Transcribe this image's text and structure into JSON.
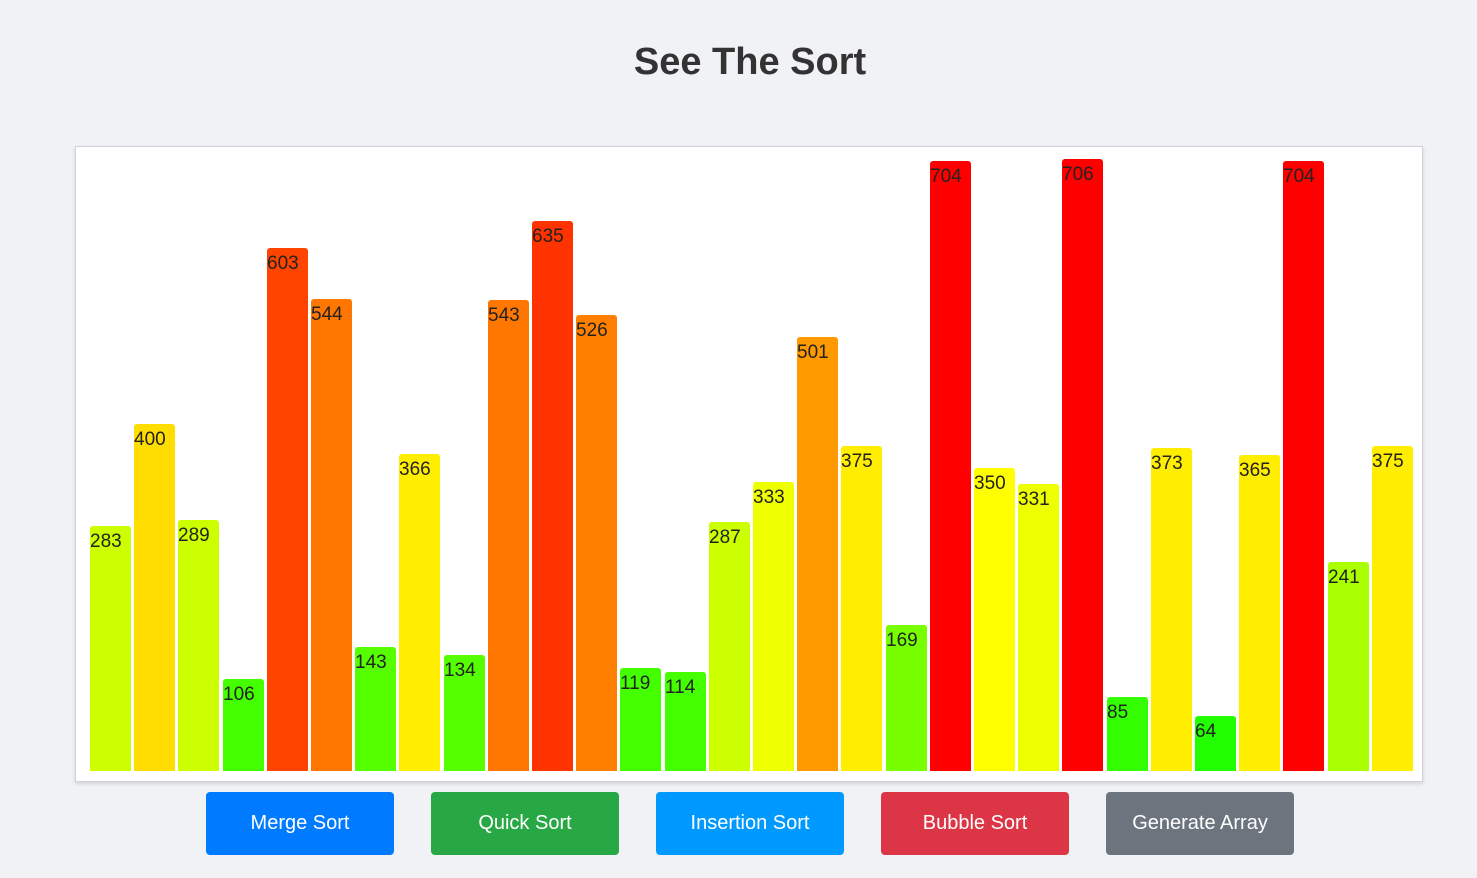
{
  "page": {
    "title": "See The Sort"
  },
  "chart_data": {
    "type": "bar",
    "values": [
      283,
      400,
      289,
      106,
      603,
      544,
      143,
      366,
      134,
      543,
      635,
      526,
      119,
      114,
      287,
      333,
      501,
      375,
      169,
      704,
      350,
      331,
      706,
      85,
      373,
      64,
      365,
      704,
      241,
      375
    ],
    "colors": [
      "#ccff00",
      "#ffdd00",
      "#ccff00",
      "#44ff00",
      "#ff4400",
      "#ff7700",
      "#55ff00",
      "#ffee00",
      "#55ff00",
      "#ff7700",
      "#ff3300",
      "#ff8000",
      "#44ff00",
      "#44ff00",
      "#ccff00",
      "#eeff00",
      "#ff9900",
      "#ffee00",
      "#77ff00",
      "#ff0000",
      "#ffff00",
      "#eeff00",
      "#ff0000",
      "#33ff00",
      "#ffee00",
      "#22ff00",
      "#ffee00",
      "#ff0000",
      "#aaff00",
      "#ffee00"
    ],
    "ylim": [
      0,
      706
    ]
  },
  "buttons": [
    {
      "label": "Merge Sort",
      "color": "#007bff"
    },
    {
      "label": "Quick Sort",
      "color": "#28a745"
    },
    {
      "label": "Insertion Sort",
      "color": "#0099ff"
    },
    {
      "label": "Bubble Sort",
      "color": "#dc3545"
    },
    {
      "label": "Generate Array",
      "color": "#6c757d"
    }
  ]
}
